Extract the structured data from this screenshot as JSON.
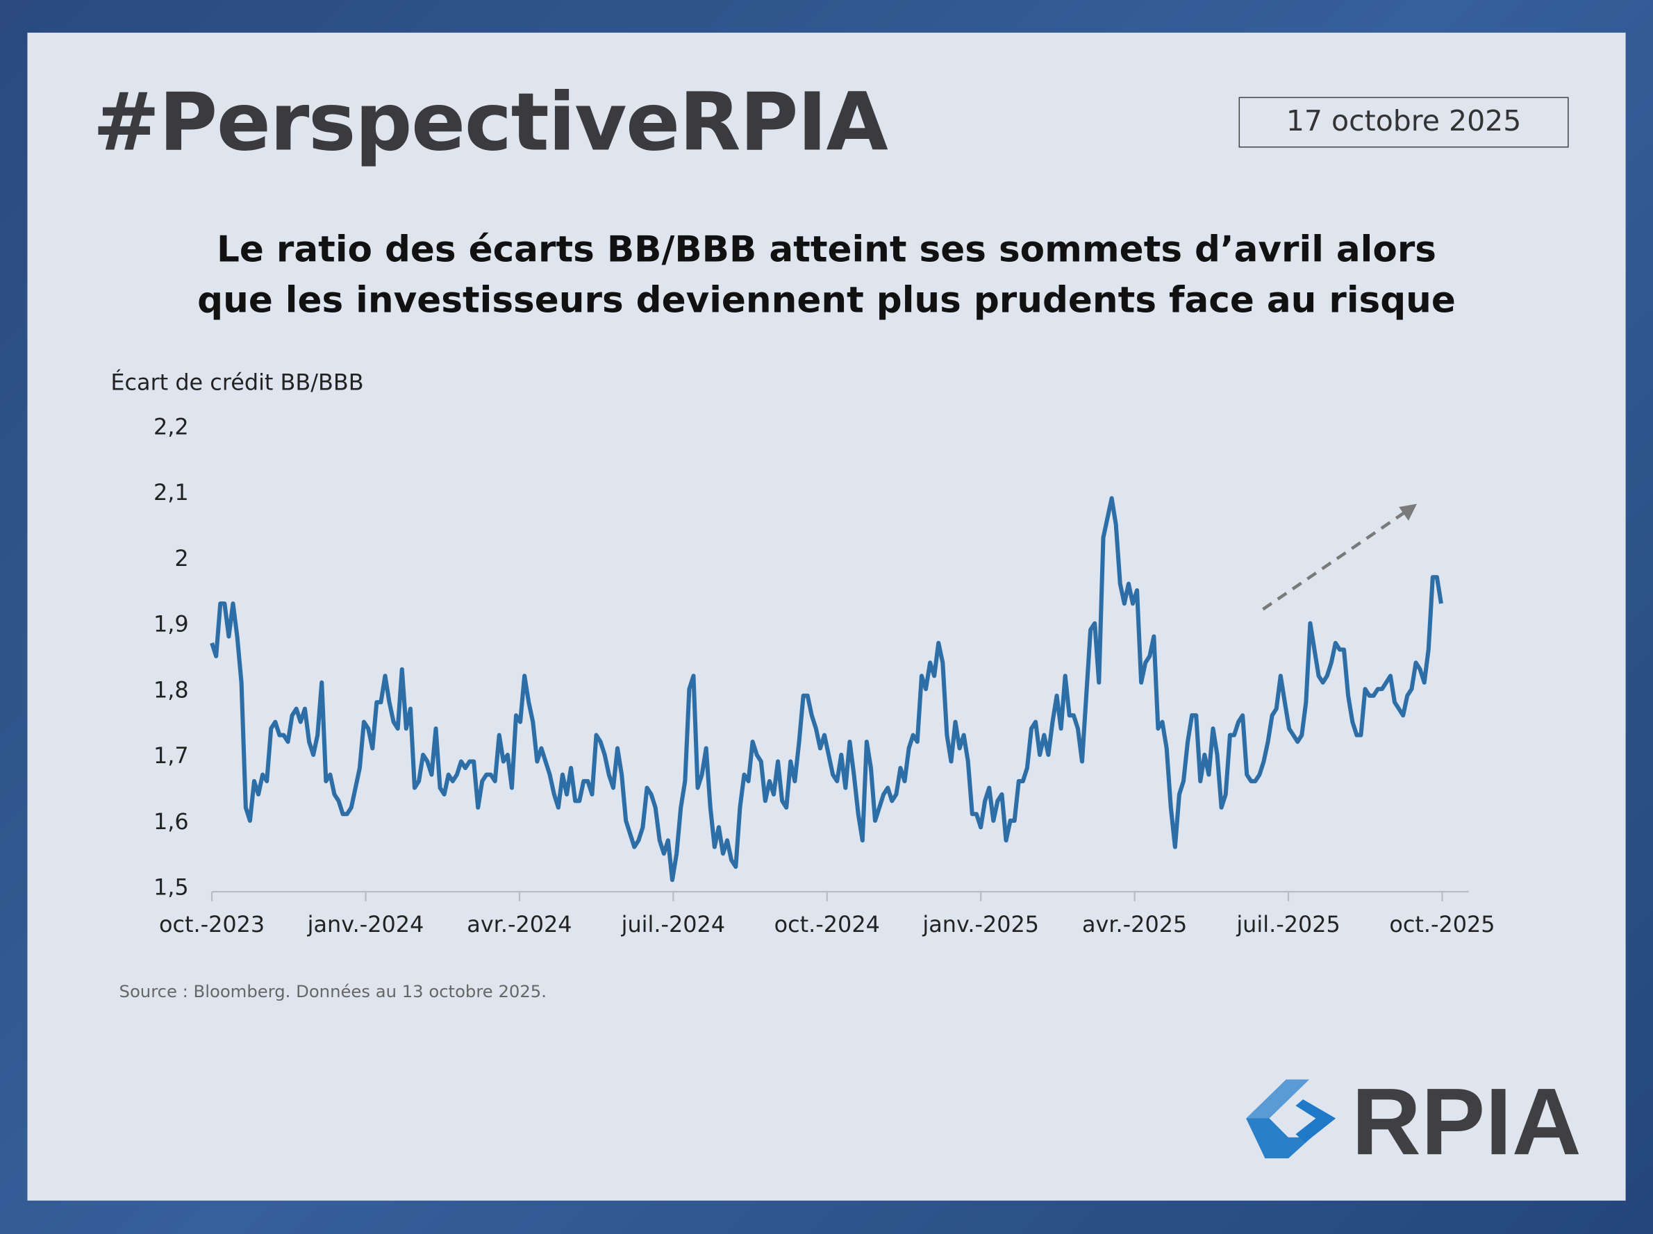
{
  "header": {
    "title": "#PerspectiveRPIA",
    "date": "17 octobre 2025"
  },
  "subtitle": {
    "line1": "Le ratio des écarts BB/BBB atteint ses sommets d’avril alors",
    "line2": "que les investisseurs deviennent plus prudents face au risque"
  },
  "footer": {
    "source": "Source : Bloomberg. Données au 13 octobre 2025.",
    "logo_text": "RPIA"
  },
  "colors": {
    "line": "#2e6ea6",
    "arrow": "#7a7a7a",
    "title": "#3b3b3f",
    "logo_light": "#5b9bd5",
    "logo_dark": "#1f78c8"
  },
  "chart_data": {
    "type": "line",
    "title": "Le ratio des écarts BB/BBB atteint ses sommets d’avril alors que les investisseurs deviennent plus prudents face au risque",
    "ylabel": "Écart de crédit BB/BBB",
    "xlabel": "",
    "ylim": [
      1.5,
      2.2
    ],
    "yticks": [
      "1,5",
      "1,6",
      "1,7",
      "1,8",
      "1,9",
      "2",
      "2,1",
      "2,2"
    ],
    "ytick_values": [
      1.5,
      1.6,
      1.7,
      1.8,
      1.9,
      2.0,
      2.1,
      2.2
    ],
    "xticks": [
      "oct.-2023",
      "janv.-2024",
      "avr.-2024",
      "juil.-2024",
      "oct.-2024",
      "janv.-2025",
      "avr.-2025",
      "juil.-2025",
      "oct.-2025"
    ],
    "x_range": [
      "2023-10",
      "2025-10-13"
    ],
    "grid": false,
    "annotation": "dashed upward trend arrow",
    "series": [
      {
        "name": "Écart de crédit BB/BBB",
        "values": [
          1.87,
          1.85,
          1.93,
          1.93,
          1.88,
          1.93,
          1.88,
          1.81,
          1.62,
          1.6,
          1.66,
          1.64,
          1.67,
          1.66,
          1.74,
          1.75,
          1.73,
          1.73,
          1.72,
          1.76,
          1.77,
          1.75,
          1.77,
          1.72,
          1.7,
          1.73,
          1.81,
          1.66,
          1.67,
          1.64,
          1.63,
          1.61,
          1.61,
          1.62,
          1.65,
          1.68,
          1.75,
          1.74,
          1.71,
          1.78,
          1.78,
          1.82,
          1.78,
          1.75,
          1.74,
          1.83,
          1.74,
          1.77,
          1.65,
          1.66,
          1.7,
          1.69,
          1.67,
          1.74,
          1.65,
          1.64,
          1.67,
          1.66,
          1.67,
          1.69,
          1.68,
          1.69,
          1.69,
          1.62,
          1.66,
          1.67,
          1.67,
          1.66,
          1.73,
          1.69,
          1.7,
          1.65,
          1.76,
          1.75,
          1.82,
          1.78,
          1.75,
          1.69,
          1.71,
          1.69,
          1.67,
          1.64,
          1.62,
          1.67,
          1.64,
          1.68,
          1.63,
          1.63,
          1.66,
          1.66,
          1.64,
          1.73,
          1.72,
          1.7,
          1.67,
          1.65,
          1.71,
          1.67,
          1.6,
          1.58,
          1.56,
          1.57,
          1.59,
          1.65,
          1.64,
          1.62,
          1.57,
          1.55,
          1.57,
          1.51,
          1.55,
          1.62,
          1.66,
          1.8,
          1.82,
          1.65,
          1.67,
          1.71,
          1.62,
          1.56,
          1.59,
          1.55,
          1.57,
          1.54,
          1.53,
          1.62,
          1.67,
          1.66,
          1.72,
          1.7,
          1.69,
          1.63,
          1.66,
          1.64,
          1.69,
          1.63,
          1.62,
          1.69,
          1.66,
          1.72,
          1.79,
          1.79,
          1.76,
          1.74,
          1.71,
          1.73,
          1.7,
          1.67,
          1.66,
          1.7,
          1.65,
          1.72,
          1.67,
          1.61,
          1.57,
          1.72,
          1.68,
          1.6,
          1.62,
          1.64,
          1.65,
          1.63,
          1.64,
          1.68,
          1.66,
          1.71,
          1.73,
          1.72,
          1.82,
          1.8,
          1.84,
          1.82,
          1.87,
          1.84,
          1.73,
          1.69,
          1.75,
          1.71,
          1.73,
          1.69,
          1.61,
          1.61,
          1.59,
          1.63,
          1.65,
          1.6,
          1.63,
          1.64,
          1.57,
          1.6,
          1.6,
          1.66,
          1.66,
          1.68,
          1.74,
          1.75,
          1.7,
          1.73,
          1.7,
          1.75,
          1.79,
          1.74,
          1.82,
          1.76,
          1.76,
          1.74,
          1.69,
          1.79,
          1.89,
          1.9,
          1.81,
          2.03,
          2.06,
          2.09,
          2.05,
          1.96,
          1.93,
          1.96,
          1.93,
          1.95,
          1.81,
          1.84,
          1.85,
          1.88,
          1.74,
          1.75,
          1.71,
          1.62,
          1.56,
          1.64,
          1.66,
          1.72,
          1.76,
          1.76,
          1.66,
          1.7,
          1.67,
          1.74,
          1.7,
          1.62,
          1.64,
          1.73,
          1.73,
          1.75,
          1.76,
          1.67,
          1.66,
          1.66,
          1.67,
          1.69,
          1.72,
          1.76,
          1.77,
          1.82,
          1.78,
          1.74,
          1.73,
          1.72,
          1.73,
          1.78,
          1.9,
          1.86,
          1.82,
          1.81,
          1.82,
          1.84,
          1.87,
          1.86,
          1.86,
          1.79,
          1.75,
          1.73,
          1.73,
          1.8,
          1.79,
          1.79,
          1.8,
          1.8,
          1.81,
          1.82,
          1.78,
          1.77,
          1.76,
          1.79,
          1.8,
          1.84,
          1.83,
          1.81,
          1.86,
          1.97,
          1.97,
          1.93
        ]
      }
    ]
  }
}
